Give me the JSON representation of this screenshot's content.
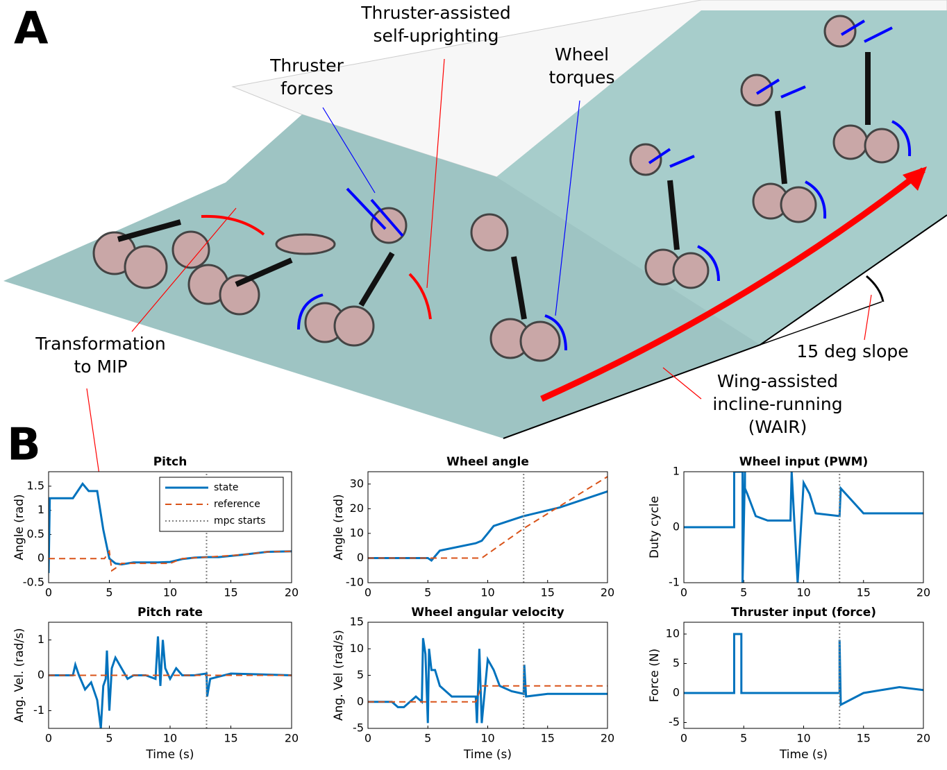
{
  "panel_a": {
    "label": "A",
    "annotations": [
      {
        "lines": [
          "Thruster-assisted",
          "self-uprighting"
        ]
      },
      {
        "lines": [
          "Thruster",
          "forces"
        ]
      },
      {
        "lines": [
          "Wheel",
          "torques"
        ]
      },
      {
        "lines": [
          "Transformation",
          "to MIP"
        ]
      },
      {
        "lines": [
          "15 deg slope"
        ]
      },
      {
        "lines": [
          "Wing-assisted",
          "incline-running",
          "(WAIR)"
        ]
      }
    ]
  },
  "panel_b": {
    "label": "B"
  },
  "chart_data": [
    {
      "type": "line",
      "title": "Pitch",
      "ylabel": "Angle (rad)",
      "xlim": [
        0,
        20
      ],
      "xticks": [
        0,
        5,
        10,
        15,
        20
      ],
      "ylim": [
        -0.5,
        1.8
      ],
      "yticks": [
        -0.5,
        0,
        0.5,
        1,
        1.5
      ],
      "legend": "upper right",
      "series": [
        {
          "name": "state",
          "color": "#0072bd",
          "style": "solid",
          "x": [
            0,
            0.1,
            2,
            2.8,
            3.3,
            3.5,
            4,
            4.5,
            5,
            5.5,
            6,
            7,
            8,
            9,
            10,
            11,
            12,
            13,
            14,
            16,
            18,
            20
          ],
          "values": [
            -0.3,
            1.25,
            1.25,
            1.55,
            1.4,
            1.4,
            1.4,
            0.6,
            0,
            -0.1,
            -0.12,
            -0.08,
            -0.08,
            -0.08,
            -0.07,
            -0.01,
            0.02,
            0.03,
            0.03,
            0.08,
            0.14,
            0.15
          ]
        },
        {
          "name": "reference",
          "color": "#d95319",
          "style": "dashed",
          "x": [
            0,
            4.6,
            5,
            5.2,
            5.5,
            6,
            9,
            10,
            11,
            13,
            16,
            18,
            20
          ],
          "values": [
            0,
            0,
            0.15,
            -0.25,
            -0.2,
            -0.1,
            -0.1,
            -0.1,
            0,
            0.03,
            0.08,
            0.14,
            0.15
          ]
        },
        {
          "name": "mpc starts",
          "color": "#808080",
          "style": "dotted",
          "x": [
            13,
            13
          ],
          "values": [
            -0.5,
            1.8
          ]
        }
      ]
    },
    {
      "type": "line",
      "title": "Wheel angle",
      "ylabel": "Angle (rad)",
      "xlim": [
        0,
        20
      ],
      "xticks": [
        0,
        5,
        10,
        15,
        20
      ],
      "ylim": [
        -10,
        35
      ],
      "yticks": [
        -10,
        0,
        10,
        20,
        30
      ],
      "series": [
        {
          "color": "#0072bd",
          "style": "solid",
          "x": [
            0,
            5,
            5.3,
            6,
            9,
            9.5,
            10,
            10.5,
            13,
            16,
            20
          ],
          "values": [
            0,
            0,
            -1,
            3,
            6,
            7,
            10,
            13,
            17,
            20.5,
            27
          ]
        },
        {
          "color": "#d95319",
          "style": "dashed",
          "x": [
            0,
            9.5,
            13,
            16,
            20
          ],
          "values": [
            0,
            0,
            12,
            21,
            33
          ]
        },
        {
          "color": "#808080",
          "style": "dotted",
          "x": [
            13,
            13
          ],
          "values": [
            -10,
            35
          ]
        }
      ]
    },
    {
      "type": "line",
      "title": "Wheel input (PWM)",
      "ylabel": "Duty cycle",
      "xlim": [
        0,
        20
      ],
      "xticks": [
        0,
        5,
        10,
        15,
        20
      ],
      "ylim": [
        -1,
        1
      ],
      "yticks": [
        -1,
        0,
        1
      ],
      "series": [
        {
          "color": "#0072bd",
          "style": "solid",
          "x": [
            0,
            4.2,
            4.2,
            4.9,
            4.9,
            5.1,
            5.1,
            5.3,
            6,
            7,
            8.9,
            9,
            9.5,
            10,
            10.5,
            11,
            13,
            13.1,
            15,
            20
          ],
          "values": [
            0,
            0,
            1,
            1,
            -1,
            1,
            0.7,
            0.6,
            0.2,
            0.12,
            0.12,
            1,
            -1,
            0.8,
            0.6,
            0.25,
            0.2,
            0.7,
            0.25,
            0.25
          ]
        },
        {
          "color": "#808080",
          "style": "dotted",
          "x": [
            13,
            13
          ],
          "values": [
            -1,
            1
          ]
        }
      ]
    },
    {
      "type": "line",
      "title": "Pitch rate",
      "ylabel": "Ang. Vel. (rad/s)",
      "xlabel": "Time (s)",
      "xlim": [
        0,
        20
      ],
      "xticks": [
        0,
        5,
        10,
        15,
        20
      ],
      "ylim": [
        -1.5,
        1.5
      ],
      "yticks": [
        -1,
        0,
        1
      ],
      "series": [
        {
          "color": "#0072bd",
          "style": "solid",
          "x": [
            0,
            2,
            2.2,
            2.5,
            3,
            3.5,
            4,
            4.3,
            4.5,
            4.7,
            4.8,
            5,
            5.2,
            5.5,
            6,
            6.5,
            7,
            8,
            8.8,
            9,
            9.2,
            9.4,
            9.6,
            10,
            10.5,
            11,
            12,
            13,
            13.05,
            13.3,
            15,
            20
          ],
          "values": [
            0,
            0,
            0.3,
            0,
            -0.4,
            -0.2,
            -0.7,
            -1.5,
            -0.3,
            -0.1,
            0.7,
            -1,
            0.2,
            0.5,
            0.2,
            -0.1,
            0,
            0,
            -0.1,
            1.1,
            -0.3,
            1,
            0.2,
            -0.1,
            0.2,
            0,
            0,
            0.05,
            -0.6,
            -0.1,
            0.05,
            0
          ]
        },
        {
          "color": "#d95319",
          "style": "dashed",
          "x": [
            0,
            20
          ],
          "values": [
            0,
            0
          ]
        },
        {
          "color": "#808080",
          "style": "dotted",
          "x": [
            13,
            13
          ],
          "values": [
            -1.5,
            1.5
          ]
        }
      ]
    },
    {
      "type": "line",
      "title": "Wheel angular velocity",
      "ylabel": "Ang. Vel (rad/s)",
      "xlabel": "Time (s)",
      "xlim": [
        0,
        20
      ],
      "xticks": [
        0,
        5,
        10,
        15,
        20
      ],
      "ylim": [
        -5,
        15
      ],
      "yticks": [
        -5,
        0,
        5,
        10,
        15
      ],
      "series": [
        {
          "color": "#0072bd",
          "style": "solid",
          "x": [
            0,
            2,
            2.5,
            3,
            3.5,
            4,
            4.5,
            4.6,
            4.8,
            5,
            5.1,
            5.3,
            5.6,
            6,
            7,
            9,
            9.1,
            9.3,
            9.5,
            10,
            10.5,
            11,
            12,
            13,
            13.05,
            13.2,
            15,
            20
          ],
          "values": [
            0,
            0,
            -1,
            -1,
            0,
            1,
            0,
            12,
            9,
            -4,
            10,
            6,
            6,
            3,
            1,
            1,
            -4,
            10,
            -4,
            8,
            6,
            3,
            2,
            1.5,
            7,
            1,
            1.5,
            1.5
          ]
        },
        {
          "color": "#d95319",
          "style": "dashed",
          "x": [
            0,
            9,
            9.5,
            20
          ],
          "values": [
            0,
            0,
            3,
            3
          ]
        },
        {
          "color": "#808080",
          "style": "dotted",
          "x": [
            13,
            13
          ],
          "values": [
            -5,
            15
          ]
        }
      ]
    },
    {
      "type": "line",
      "title": "Thruster input (force)",
      "ylabel": "Force (N)",
      "xlabel": "Time (s)",
      "xlim": [
        0,
        20
      ],
      "xticks": [
        0,
        5,
        10,
        15,
        20
      ],
      "ylim": [
        -6,
        12
      ],
      "yticks": [
        -5,
        0,
        5,
        10
      ],
      "series": [
        {
          "color": "#0072bd",
          "style": "solid",
          "x": [
            0,
            4.2,
            4.2,
            4.8,
            4.8,
            13,
            13,
            13.1,
            15,
            18,
            20
          ],
          "values": [
            0,
            0,
            10,
            10,
            0,
            0,
            9,
            -2,
            0,
            1,
            0.5
          ]
        },
        {
          "color": "#808080",
          "style": "dotted",
          "x": [
            13,
            13
          ],
          "values": [
            -6,
            12
          ]
        }
      ]
    }
  ]
}
